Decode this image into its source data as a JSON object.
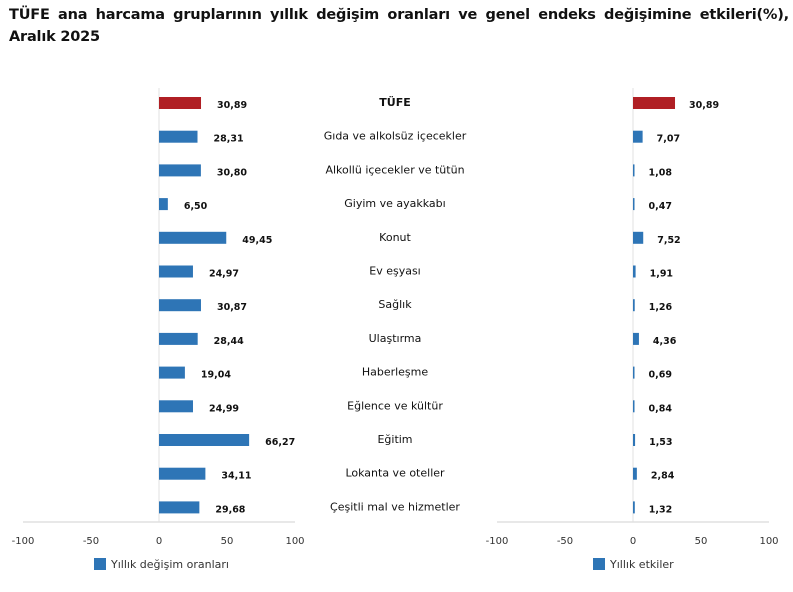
{
  "title": "TÜFE ana harcama gruplarının yıllık değişim oranları ve genel endeks değişimine etkileri(%), Aralık 2025",
  "colors": {
    "highlight": "#B01F24",
    "bar": "#2E75B6"
  },
  "chart_data": [
    {
      "type": "bar",
      "orientation": "horizontal",
      "categories": [
        "TÜFE",
        "Gıda ve alkolsüz içecekler",
        "Alkollü içecekler ve tütün",
        "Giyim ve ayakkabı",
        "Konut",
        "Ev eşyası",
        "Sağlık",
        "Ulaştırma",
        "Haberleşme",
        "Eğlence ve kültür",
        "Eğitim",
        "Lokanta ve oteller",
        "Çeşitli mal ve hizmetler"
      ],
      "series": [
        {
          "name": "Yıllık değişim oranları",
          "values": [
            30.89,
            28.31,
            30.8,
            6.5,
            49.45,
            24.97,
            30.87,
            28.44,
            19.04,
            24.99,
            66.27,
            34.11,
            29.68
          ]
        }
      ],
      "data_labels": [
        "30,89",
        "28,31",
        "30,80",
        "6,50",
        "49,45",
        "24,97",
        "30,87",
        "28,44",
        "19,04",
        "24,99",
        "66,27",
        "34,11",
        "29,68"
      ],
      "xlim": [
        -100,
        100
      ],
      "xticks": [
        "-100",
        "-50",
        "0",
        "50",
        "100"
      ],
      "legend": "bottom",
      "grid": false
    },
    {
      "type": "bar",
      "orientation": "horizontal",
      "categories": [
        "TÜFE",
        "Gıda ve alkolsüz içecekler",
        "Alkollü içecekler ve tütün",
        "Giyim ve ayakkabı",
        "Konut",
        "Ev eşyası",
        "Sağlık",
        "Ulaştırma",
        "Haberleşme",
        "Eğlence ve kültür",
        "Eğitim",
        "Lokanta ve oteller",
        "Çeşitli mal ve hizmetler"
      ],
      "series": [
        {
          "name": "Yıllık etkiler",
          "values": [
            30.89,
            7.07,
            1.08,
            0.47,
            7.52,
            1.91,
            1.26,
            4.36,
            0.69,
            0.84,
            1.53,
            2.84,
            1.32
          ]
        }
      ],
      "data_labels": [
        "30,89",
        "7,07",
        "1,08",
        "0,47",
        "7,52",
        "1,91",
        "1,26",
        "4,36",
        "0,69",
        "0,84",
        "1,53",
        "2,84",
        "1,32"
      ],
      "xlim": [
        -100,
        100
      ],
      "xticks": [
        "-100",
        "-50",
        "0",
        "50",
        "100"
      ],
      "legend": "bottom",
      "grid": false
    }
  ]
}
